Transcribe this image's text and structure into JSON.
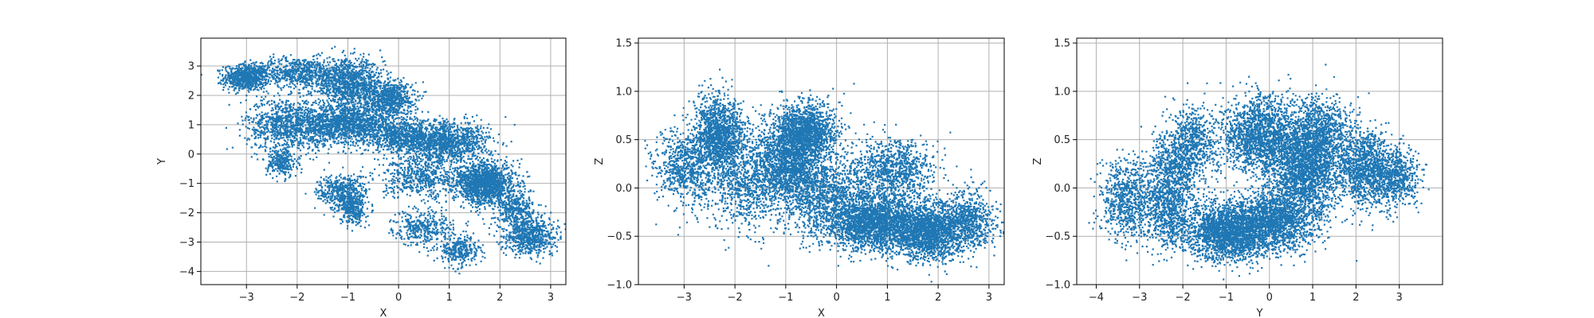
{
  "chart_data": [
    {
      "type": "scatter",
      "xlabel": "X",
      "ylabel": "Y",
      "xlim": [
        -3.9,
        3.3
      ],
      "ylim": [
        -4.45,
        3.95
      ],
      "xticks": [
        -3,
        -2,
        -1,
        0,
        1,
        2,
        3
      ],
      "yticks": [
        -4,
        -3,
        -2,
        -1,
        0,
        1,
        2,
        3
      ],
      "xtick_labels": [
        "−3",
        "−2",
        "−1",
        "0",
        "1",
        "2",
        "3"
      ],
      "ytick_labels": [
        "−4",
        "−3",
        "−2",
        "−1",
        "0",
        "1",
        "2",
        "3"
      ],
      "grid": true,
      "color": "#1f77b4",
      "clusters": [
        {
          "x": -3.0,
          "y": 2.6,
          "sx": 0.22,
          "sy": 0.22,
          "n": 700
        },
        {
          "x": -2.0,
          "y": 2.8,
          "sx": 0.45,
          "sy": 0.25,
          "n": 600
        },
        {
          "x": -2.2,
          "y": 1.0,
          "sx": 0.4,
          "sy": 0.45,
          "n": 900
        },
        {
          "x": -2.3,
          "y": -0.3,
          "sx": 0.15,
          "sy": 0.25,
          "n": 250
        },
        {
          "x": -1.0,
          "y": 2.4,
          "sx": 0.35,
          "sy": 0.4,
          "n": 1100
        },
        {
          "x": -1.0,
          "y": 1.0,
          "sx": 0.45,
          "sy": 0.35,
          "n": 1400
        },
        {
          "x": -0.2,
          "y": 1.9,
          "sx": 0.25,
          "sy": 0.3,
          "n": 700
        },
        {
          "x": -1.1,
          "y": -1.3,
          "sx": 0.25,
          "sy": 0.3,
          "n": 450
        },
        {
          "x": -0.9,
          "y": -1.9,
          "sx": 0.12,
          "sy": 0.25,
          "n": 300
        },
        {
          "x": 0.1,
          "y": 0.6,
          "sx": 0.3,
          "sy": 0.3,
          "n": 700
        },
        {
          "x": 1.0,
          "y": 0.4,
          "sx": 0.4,
          "sy": 0.35,
          "n": 1100
        },
        {
          "x": 0.4,
          "y": -0.8,
          "sx": 0.35,
          "sy": 0.35,
          "n": 500
        },
        {
          "x": 0.5,
          "y": -2.5,
          "sx": 0.3,
          "sy": 0.3,
          "n": 350
        },
        {
          "x": 1.2,
          "y": -3.3,
          "sx": 0.2,
          "sy": 0.25,
          "n": 300
        },
        {
          "x": 1.7,
          "y": -1.0,
          "sx": 0.3,
          "sy": 0.35,
          "n": 1500
        },
        {
          "x": 2.3,
          "y": -1.9,
          "sx": 0.2,
          "sy": 0.3,
          "n": 350
        },
        {
          "x": 2.6,
          "y": -2.8,
          "sx": 0.25,
          "sy": 0.3,
          "n": 700
        }
      ]
    },
    {
      "type": "scatter",
      "xlabel": "X",
      "ylabel": "Z",
      "xlim": [
        -3.9,
        3.3
      ],
      "ylim": [
        -1.0,
        1.55
      ],
      "xticks": [
        -3,
        -2,
        -1,
        0,
        1,
        2,
        3
      ],
      "yticks": [
        -1.0,
        -0.5,
        0.0,
        0.5,
        1.0,
        1.5
      ],
      "xtick_labels": [
        "−3",
        "−2",
        "−1",
        "0",
        "1",
        "2",
        "3"
      ],
      "ytick_labels": [
        "−1.0",
        "−0.5",
        "0.0",
        "0.5",
        "1.0",
        "1.5"
      ],
      "grid": true,
      "color": "#1f77b4",
      "clusters": [
        {
          "x": -3.0,
          "y": 0.2,
          "sx": 0.3,
          "sy": 0.2,
          "n": 700
        },
        {
          "x": -2.3,
          "y": 0.55,
          "sx": 0.25,
          "sy": 0.2,
          "n": 1300
        },
        {
          "x": -1.8,
          "y": 0.1,
          "sx": 0.45,
          "sy": 0.25,
          "n": 1000
        },
        {
          "x": -0.9,
          "y": 0.3,
          "sx": 0.35,
          "sy": 0.2,
          "n": 1500
        },
        {
          "x": -0.6,
          "y": 0.6,
          "sx": 0.3,
          "sy": 0.15,
          "n": 1200
        },
        {
          "x": -0.3,
          "y": -0.1,
          "sx": 0.45,
          "sy": 0.2,
          "n": 1100
        },
        {
          "x": 0.7,
          "y": -0.35,
          "sx": 0.45,
          "sy": 0.15,
          "n": 2200
        },
        {
          "x": 1.1,
          "y": 0.2,
          "sx": 0.4,
          "sy": 0.15,
          "n": 900
        },
        {
          "x": 1.8,
          "y": -0.45,
          "sx": 0.35,
          "sy": 0.15,
          "n": 1700
        },
        {
          "x": 2.6,
          "y": -0.35,
          "sx": 0.25,
          "sy": 0.15,
          "n": 700
        }
      ]
    },
    {
      "type": "scatter",
      "xlabel": "Y",
      "ylabel": "Z",
      "xlim": [
        -4.45,
        4.0
      ],
      "ylim": [
        -1.0,
        1.55
      ],
      "xticks": [
        -4,
        -3,
        -2,
        -1,
        0,
        1,
        2,
        3
      ],
      "yticks": [
        -1.0,
        -0.5,
        0.0,
        0.5,
        1.0,
        1.5
      ],
      "xtick_labels": [
        "−4",
        "−3",
        "−2",
        "−1",
        "0",
        "1",
        "2",
        "3"
      ],
      "ytick_labels": [
        "−1.0",
        "−0.5",
        "0.0",
        "0.5",
        "1.0",
        "1.5"
      ],
      "grid": true,
      "color": "#1f77b4",
      "clusters": [
        {
          "x": -3.3,
          "y": -0.15,
          "sx": 0.3,
          "sy": 0.2,
          "n": 700
        },
        {
          "x": -2.3,
          "y": -0.25,
          "sx": 0.3,
          "sy": 0.2,
          "n": 700
        },
        {
          "x": -1.8,
          "y": 0.45,
          "sx": 0.3,
          "sy": 0.2,
          "n": 700
        },
        {
          "x": -2.3,
          "y": 0.15,
          "sx": 0.3,
          "sy": 0.2,
          "n": 500
        },
        {
          "x": -1.0,
          "y": -0.45,
          "sx": 0.45,
          "sy": 0.15,
          "n": 2000
        },
        {
          "x": 0.1,
          "y": -0.35,
          "sx": 0.45,
          "sy": 0.15,
          "n": 1600
        },
        {
          "x": -0.2,
          "y": 0.55,
          "sx": 0.45,
          "sy": 0.2,
          "n": 1600
        },
        {
          "x": 0.8,
          "y": 0.15,
          "sx": 0.4,
          "sy": 0.25,
          "n": 1900
        },
        {
          "x": 1.2,
          "y": 0.55,
          "sx": 0.35,
          "sy": 0.2,
          "n": 900
        },
        {
          "x": 2.2,
          "y": 0.2,
          "sx": 0.35,
          "sy": 0.2,
          "n": 1100
        },
        {
          "x": 2.9,
          "y": 0.1,
          "sx": 0.3,
          "sy": 0.15,
          "n": 600
        }
      ]
    }
  ]
}
